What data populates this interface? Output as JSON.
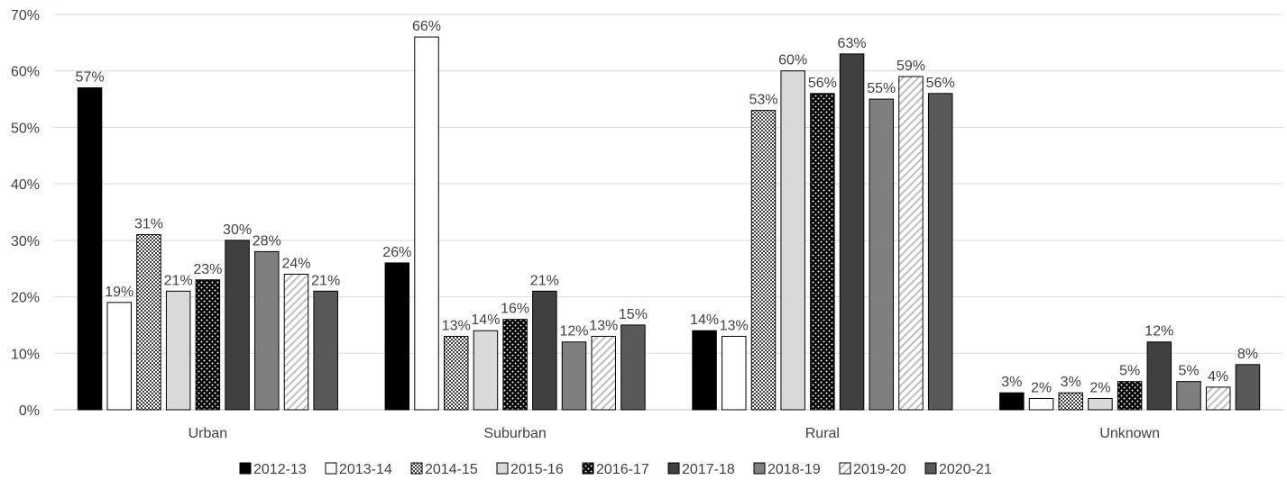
{
  "chart_data": {
    "type": "bar",
    "categories": [
      "Urban",
      "Suburban",
      "Rural",
      "Unknown"
    ],
    "series": [
      {
        "name": "2012-13",
        "values": [
          57,
          26,
          14,
          3
        ],
        "color": "#000000",
        "pattern": "solid"
      },
      {
        "name": "2013-14",
        "values": [
          19,
          66,
          13,
          2
        ],
        "color": "#ffffff",
        "pattern": "outline"
      },
      {
        "name": "2014-15",
        "values": [
          31,
          13,
          53,
          3
        ],
        "color": "#7f7f7f",
        "pattern": "checker"
      },
      {
        "name": "2015-16",
        "values": [
          21,
          14,
          60,
          2
        ],
        "color": "#d9d9d9",
        "pattern": "solid"
      },
      {
        "name": "2016-17",
        "values": [
          23,
          16,
          56,
          5
        ],
        "color": "#000000",
        "pattern": "dots"
      },
      {
        "name": "2017-18",
        "values": [
          30,
          21,
          63,
          12
        ],
        "color": "#404040",
        "pattern": "solid"
      },
      {
        "name": "2018-19",
        "values": [
          28,
          12,
          55,
          5
        ],
        "color": "#7f7f7f",
        "pattern": "solid"
      },
      {
        "name": "2019-20",
        "values": [
          24,
          13,
          59,
          4
        ],
        "color": "#ffffff",
        "pattern": "diagonal"
      },
      {
        "name": "2020-21",
        "values": [
          21,
          15,
          56,
          8
        ],
        "color": "#595959",
        "pattern": "solid"
      }
    ],
    "value_suffix": "%",
    "ylim": [
      0,
      70
    ],
    "yticks": [
      0,
      10,
      20,
      30,
      40,
      50,
      60,
      70
    ],
    "ytick_labels": [
      "0%",
      "10%",
      "20%",
      "30%",
      "40%",
      "50%",
      "60%",
      "70%"
    ],
    "gridlines": true,
    "legend_position": "bottom",
    "title": "",
    "xlabel": "",
    "ylabel": ""
  }
}
